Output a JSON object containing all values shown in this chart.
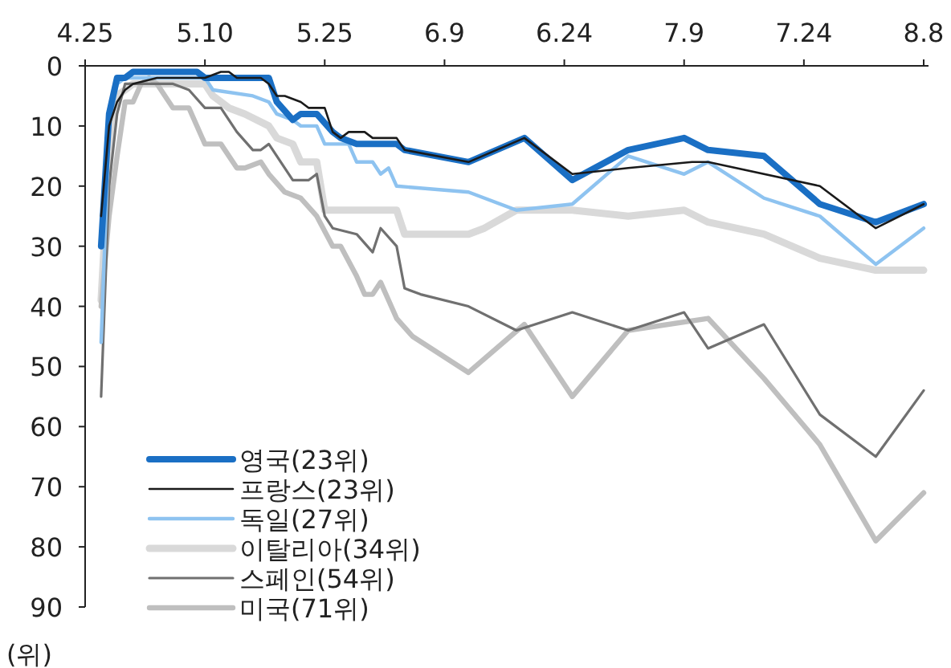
{
  "chart_data": {
    "type": "line",
    "ylabel": "(위)",
    "xlim": [
      "--04-25",
      "--08-08"
    ],
    "xticks": [
      {
        "value": "--04-25",
        "label": "4.25"
      },
      {
        "value": "--05-10",
        "label": "5.10"
      },
      {
        "value": "--05-25",
        "label": "5.25"
      },
      {
        "value": "--06-09",
        "label": "6.9"
      },
      {
        "value": "--06-24",
        "label": "6.24"
      },
      {
        "value": "--07-09",
        "label": "7.9"
      },
      {
        "value": "--07-24",
        "label": "7.24"
      },
      {
        "value": "--08-08",
        "label": "8.8"
      }
    ],
    "ylim": [
      90,
      0
    ],
    "yticks": [
      0,
      10,
      20,
      30,
      40,
      50,
      60,
      70,
      80,
      90
    ],
    "grid": false,
    "legend": "bottom left",
    "marker": "none",
    "line_style": "solid",
    "series": [
      {
        "name": "영국(23위)",
        "color": "#1a6fc4",
        "x": [
          "--04-27",
          "--04-28",
          "--04-29",
          "--04-30",
          "--05-01",
          "--05-09",
          "--05-10",
          "--05-18",
          "--05-19",
          "--05-21",
          "--05-22",
          "--05-24",
          "--05-26",
          "--05-27",
          "--05-29",
          "--06-03",
          "--06-04",
          "--06-12",
          "--06-19",
          "--06-25",
          "--07-02",
          "--07-09",
          "--07-12",
          "--07-19",
          "--07-26",
          "--08-02",
          "--08-08"
        ],
        "values": [
          30,
          8,
          2,
          2,
          1,
          1,
          2,
          2,
          6,
          9,
          8,
          8,
          11,
          12,
          13,
          13,
          14,
          16,
          12,
          19,
          14,
          12,
          14,
          15,
          23,
          26,
          23
        ]
      },
      {
        "name": "프랑스(23위)",
        "color": "#1a1a1a",
        "x": [
          "--04-27",
          "--04-28",
          "--04-29",
          "--04-30",
          "--05-01",
          "--05-04",
          "--05-10",
          "--05-12",
          "--05-13",
          "--05-14",
          "--05-17",
          "--05-18",
          "--05-19",
          "--05-20",
          "--05-22",
          "--05-23",
          "--05-25",
          "--05-26",
          "--05-27",
          "--05-28",
          "--05-30",
          "--05-31",
          "--06-03",
          "--06-04",
          "--06-12",
          "--06-19",
          "--06-25",
          "--07-02",
          "--07-10",
          "--07-12",
          "--07-26",
          "--08-02",
          "--08-08"
        ],
        "values": [
          25,
          10,
          6,
          4,
          3,
          2,
          2,
          1,
          1,
          2,
          2,
          3,
          5,
          5,
          6,
          7,
          7,
          11,
          12,
          11,
          11,
          12,
          12,
          14,
          16,
          12,
          18,
          17,
          16,
          16,
          20,
          27,
          23
        ]
      },
      {
        "name": "독일(27위)",
        "color": "#8ec3f0",
        "x": [
          "--04-27",
          "--04-28",
          "--04-29",
          "--04-30",
          "--05-01",
          "--05-10",
          "--05-11",
          "--05-16",
          "--05-18",
          "--05-19",
          "--05-21",
          "--05-22",
          "--05-23",
          "--05-24",
          "--05-25",
          "--05-27",
          "--05-28",
          "--05-29",
          "--05-31",
          "--06-01",
          "--06-02",
          "--06-03",
          "--06-12",
          "--06-14",
          "--06-18",
          "--06-25",
          "--07-02",
          "--07-09",
          "--07-12",
          "--07-19",
          "--07-26",
          "--08-02",
          "--08-08"
        ],
        "values": [
          46,
          10,
          3,
          2,
          2,
          2,
          4,
          5,
          6,
          8,
          9,
          10,
          10,
          10,
          13,
          13,
          13,
          16,
          16,
          18,
          17,
          20,
          21,
          22,
          24,
          23,
          15,
          18,
          16,
          22,
          25,
          33,
          27
        ]
      },
      {
        "name": "이탈리아(34위)",
        "color": "#d9d9d9",
        "x": [
          "--04-27",
          "--04-28",
          "--04-29",
          "--05-01",
          "--05-04",
          "--05-10",
          "--05-11",
          "--05-13",
          "--05-15",
          "--05-18",
          "--05-19",
          "--05-21",
          "--05-22",
          "--05-24",
          "--05-25",
          "--05-27",
          "--06-03",
          "--06-04",
          "--06-12",
          "--06-14",
          "--06-18",
          "--06-25",
          "--07-02",
          "--07-09",
          "--07-12",
          "--07-19",
          "--07-26",
          "--08-02",
          "--08-08"
        ],
        "values": [
          39,
          15,
          5,
          3,
          3,
          3,
          5,
          7,
          8,
          10,
          12,
          13,
          16,
          16,
          24,
          24,
          24,
          28,
          28,
          27,
          24,
          24,
          25,
          24,
          26,
          28,
          32,
          34,
          34
        ]
      },
      {
        "name": "스페인(54위)",
        "color": "#707070",
        "x": [
          "--04-27",
          "--04-28",
          "--04-29",
          "--04-30",
          "--05-01",
          "--05-06",
          "--05-08",
          "--05-10",
          "--05-12",
          "--05-14",
          "--05-16",
          "--05-17",
          "--05-18",
          "--05-20",
          "--05-21",
          "--05-23",
          "--05-24",
          "--05-25",
          "--05-26",
          "--05-29",
          "--05-31",
          "--06-01",
          "--06-03",
          "--06-04",
          "--06-06",
          "--06-12",
          "--06-18",
          "--06-25",
          "--07-02",
          "--07-09",
          "--07-12",
          "--07-19",
          "--07-26",
          "--08-02",
          "--08-08"
        ],
        "values": [
          55,
          20,
          8,
          3,
          3,
          3,
          4,
          7,
          7,
          11,
          14,
          14,
          13,
          17,
          19,
          19,
          18,
          25,
          27,
          28,
          31,
          27,
          30,
          37,
          38,
          40,
          44,
          41,
          44,
          41,
          47,
          43,
          58,
          65,
          54
        ]
      },
      {
        "name": "미국(71위)",
        "color": "#bfbfbf",
        "x": [
          "--04-27",
          "--04-28",
          "--04-29",
          "--04-30",
          "--05-01",
          "--05-02",
          "--05-03",
          "--05-04",
          "--05-06",
          "--05-08",
          "--05-10",
          "--05-12",
          "--05-14",
          "--05-15",
          "--05-17",
          "--05-18",
          "--05-20",
          "--05-22",
          "--05-24",
          "--05-26",
          "--05-27",
          "--05-29",
          "--05-30",
          "--05-31",
          "--06-01",
          "--06-02",
          "--06-03",
          "--06-05",
          "--06-12",
          "--06-19",
          "--06-25",
          "--07-02",
          "--07-12",
          "--07-19",
          "--07-26",
          "--08-02",
          "--08-08"
        ],
        "values": [
          40,
          25,
          15,
          6,
          6,
          3,
          2,
          3,
          7,
          7,
          13,
          13,
          17,
          17,
          16,
          18,
          21,
          22,
          25,
          30,
          30,
          35,
          38,
          38,
          36,
          39,
          42,
          45,
          51,
          43,
          55,
          44,
          42,
          52,
          63,
          79,
          71
        ]
      }
    ]
  }
}
